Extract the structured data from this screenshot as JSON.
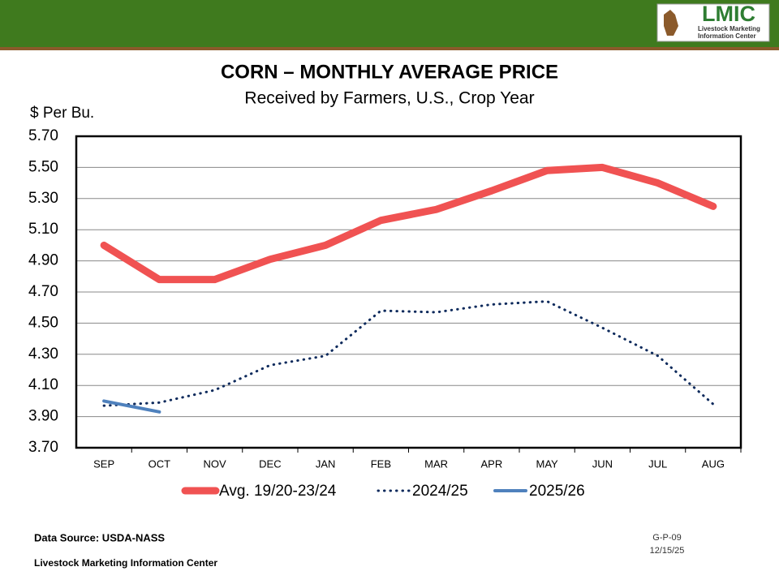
{
  "header": {
    "logo": "LMIC",
    "logo_line1": "Livestock Marketing",
    "logo_line2": "Information Center"
  },
  "chart_data": {
    "type": "line",
    "title": "CORN – MONTHLY AVERAGE PRICE",
    "subtitle": "Received by Farmers, U.S., Crop Year",
    "y_label": "$ Per Bu.",
    "categories": [
      "SEP",
      "OCT",
      "NOV",
      "DEC",
      "JAN",
      "FEB",
      "MAR",
      "APR",
      "MAY",
      "JUN",
      "JUL",
      "AUG"
    ],
    "series": [
      {
        "name": "Avg. 19/20-23/24",
        "color": "#f05252",
        "style": "solid",
        "width": 9,
        "values": [
          5.0,
          4.78,
          4.78,
          4.91,
          5.0,
          5.16,
          5.23,
          5.35,
          5.48,
          5.5,
          5.4,
          5.25
        ]
      },
      {
        "name": "2024/25",
        "color": "#0d2a5c",
        "style": "dotted",
        "width": 3,
        "values": [
          3.97,
          3.99,
          4.07,
          4.23,
          4.29,
          4.58,
          4.57,
          4.62,
          4.64,
          4.47,
          4.29,
          3.98
        ]
      },
      {
        "name": "2025/26",
        "color": "#4f81bd",
        "style": "solid",
        "width": 4,
        "values": [
          4.0,
          3.93,
          null,
          null,
          null,
          null,
          null,
          null,
          null,
          null,
          null,
          null
        ]
      }
    ],
    "ylim": [
      3.7,
      5.7
    ],
    "yticks": [
      {
        "value": 3.7,
        "label": "3.70"
      },
      {
        "value": 3.9,
        "label": "3.90"
      },
      {
        "value": 4.1,
        "label": "4.10"
      },
      {
        "value": 4.3,
        "label": "4.30"
      },
      {
        "value": 4.5,
        "label": "4.50"
      },
      {
        "value": 4.7,
        "label": "4.70"
      },
      {
        "value": 4.9,
        "label": "4.90"
      },
      {
        "value": 5.1,
        "label": "5.10"
      },
      {
        "value": 5.3,
        "label": "5.30"
      },
      {
        "value": 5.5,
        "label": "5.50"
      },
      {
        "value": 5.7,
        "label": "5.70"
      }
    ],
    "grid": true
  },
  "footer": {
    "source": "Data Source:  USDA-NASS",
    "org": "Livestock Marketing Information Center",
    "code": "G-P-09",
    "date": "12/15/25"
  }
}
